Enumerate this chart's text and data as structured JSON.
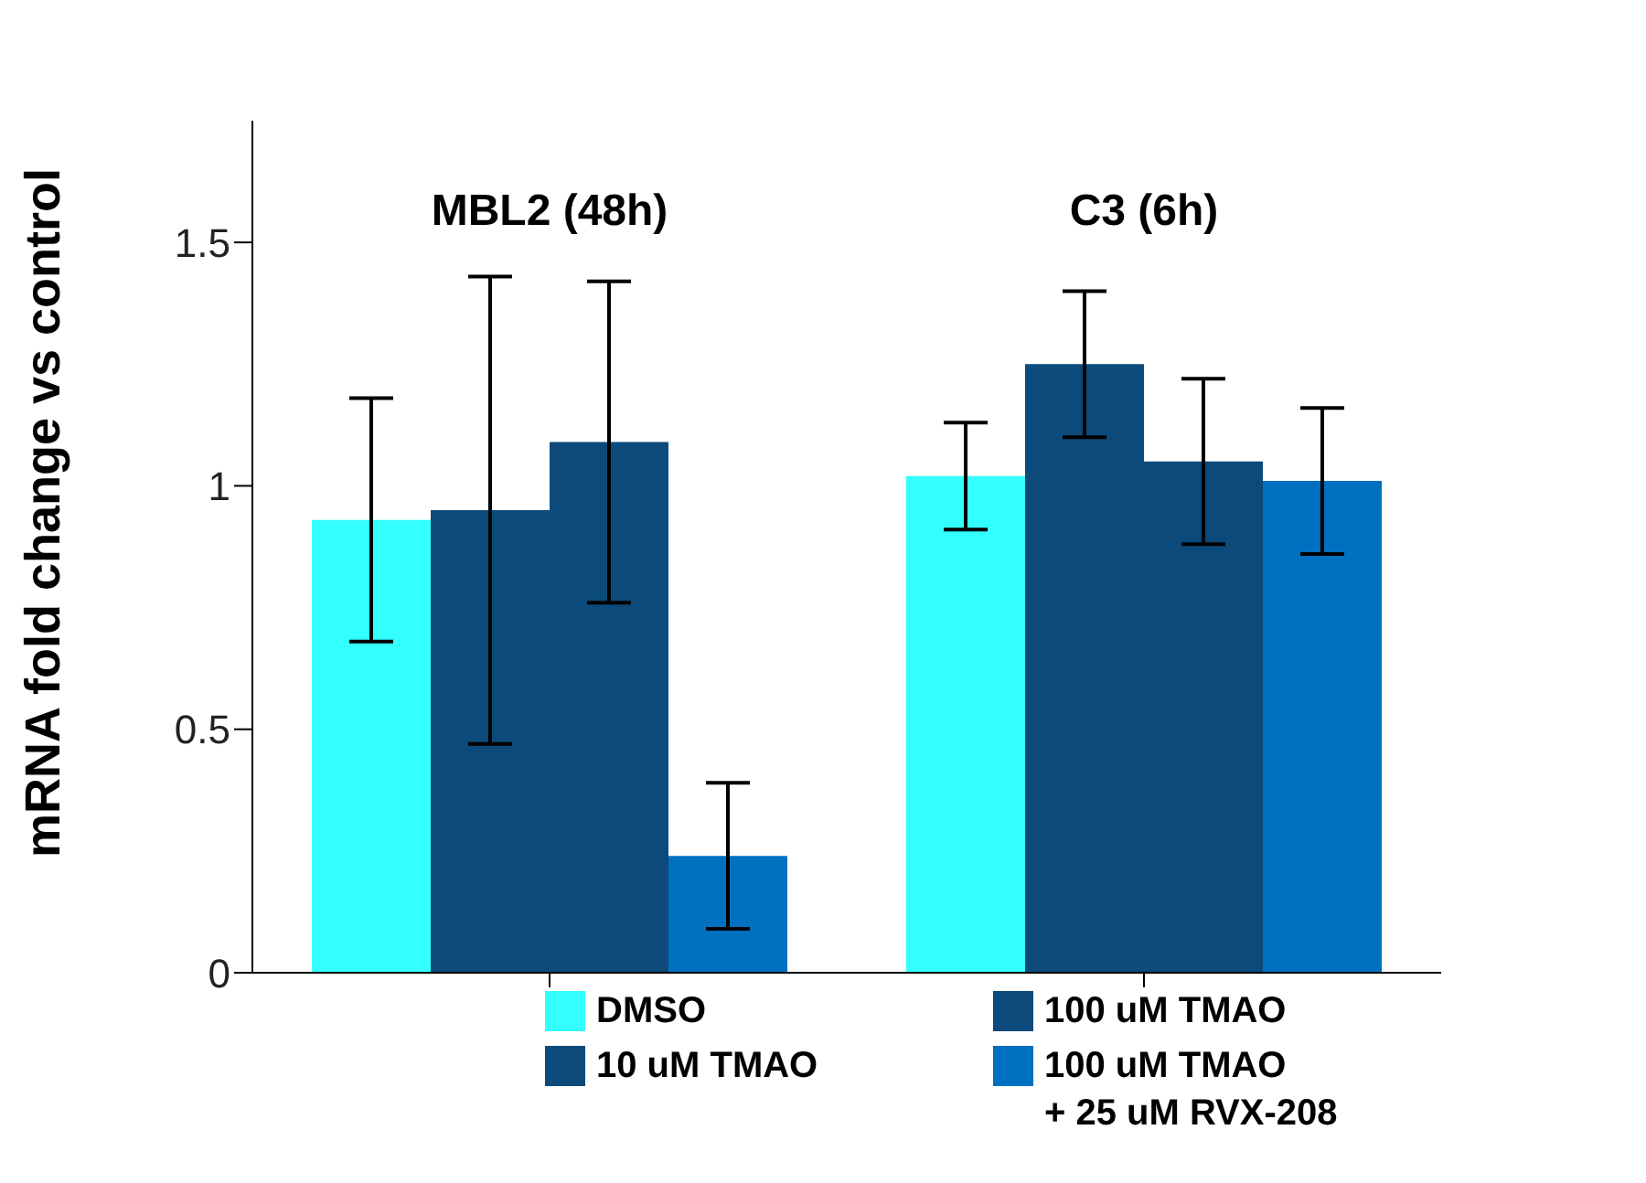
{
  "chart_data": {
    "type": "bar",
    "ylabel": "mRNA fold change vs control",
    "categories": [
      "MBL2 (48h)",
      "C3 (6h)"
    ],
    "series": [
      {
        "name": "DMSO",
        "color": "#33ffff",
        "values": [
          0.93,
          1.02
        ],
        "errors": [
          0.25,
          0.11
        ]
      },
      {
        "name": "10 uM TMAO",
        "color": "#0b4a7a",
        "values": [
          0.95,
          1.25
        ],
        "errors": [
          0.48,
          0.15
        ]
      },
      {
        "name": "100 uM TMAO",
        "color": "#0b4a7a",
        "values": [
          1.09,
          1.05
        ],
        "errors": [
          0.33,
          0.17
        ]
      },
      {
        "name": "100 uM TMAO\n+ 25 uM RVX-208",
        "color": "#0070c0",
        "values": [
          0.24,
          1.01
        ],
        "errors": [
          0.15,
          0.15
        ]
      }
    ],
    "ylim": [
      0,
      1.75
    ],
    "yticks": [
      0,
      0.5,
      1,
      1.5
    ],
    "legend": "bottom"
  }
}
